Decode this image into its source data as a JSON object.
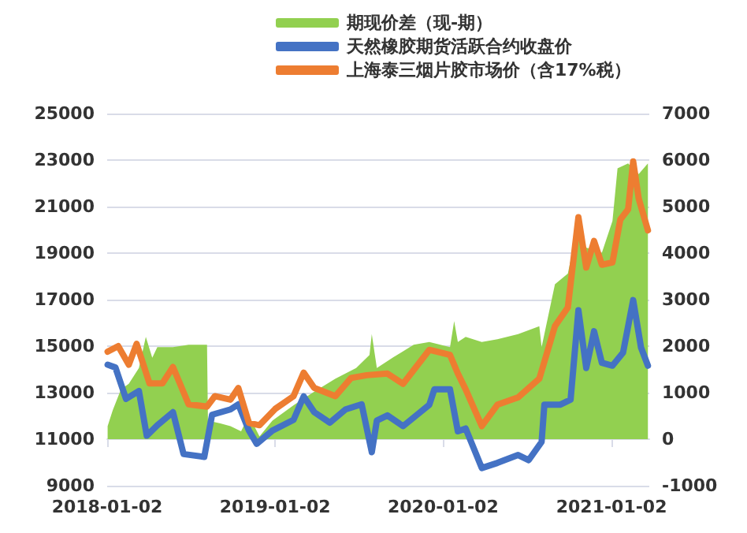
{
  "chart_data": {
    "type": "line",
    "legend": "top",
    "grid": "y",
    "marker": "none",
    "line_style": "solid",
    "xlim": [
      "2018-01-02",
      "2021-03-25"
    ],
    "xticks": [
      {
        "value": "2018-01-02",
        "label": "2018-01-02"
      },
      {
        "value": "2019-01-02",
        "label": "2019-01-02"
      },
      {
        "value": "2020-01-02",
        "label": "2020-01-02"
      },
      {
        "value": "2021-01-02",
        "label": "2021-01-02"
      }
    ],
    "ylim": [
      9000,
      25000
    ],
    "yticks": [
      9000,
      11000,
      13000,
      15000,
      17000,
      19000,
      21000,
      23000,
      25000
    ],
    "y2lim": [
      -1000,
      7000
    ],
    "y2ticks": [
      -1000,
      0,
      1000,
      2000,
      3000,
      4000,
      5000,
      6000,
      7000
    ],
    "series": [
      {
        "name": "期现价差（现-期）",
        "type": "area",
        "axis": "y2",
        "color": "#92d050",
        "x": [
          "2018-01-03",
          "2018-01-14",
          "2018-02-01",
          "2018-02-18",
          "2018-03-12",
          "2018-03-27",
          "2018-04-10",
          "2018-04-21",
          "2018-05-25",
          "2018-06-28",
          "2018-08-07",
          "2018-08-09",
          "2018-09-05",
          "2018-09-27",
          "2018-10-20",
          "2018-11-06",
          "2018-11-29",
          "2018-12-27",
          "2019-02-11",
          "2019-03-28",
          "2019-05-13",
          "2019-06-27",
          "2019-07-26",
          "2019-07-31",
          "2019-08-11",
          "2019-09-14",
          "2019-10-30",
          "2019-12-03",
          "2020-01-17",
          "2020-01-26",
          "2020-02-03",
          "2020-02-20",
          "2020-03-26",
          "2020-04-29",
          "2020-06-13",
          "2020-07-29",
          "2020-08-03",
          "2020-09-01",
          "2020-09-29",
          "2020-10-16",
          "2020-11-08",
          "2020-12-12",
          "2021-01-04",
          "2021-01-15",
          "2021-02-07",
          "2021-03-02",
          "2021-03-22"
        ],
        "values": [
          280,
          620,
          1070,
          1190,
          1530,
          2200,
          1750,
          1980,
          1980,
          2030,
          2030,
          400,
          340,
          280,
          170,
          510,
          60,
          400,
          730,
          1020,
          1300,
          1530,
          1810,
          2260,
          1530,
          1750,
          2030,
          2090,
          1980,
          2540,
          2090,
          2200,
          2090,
          2150,
          2260,
          2430,
          1980,
          3330,
          3560,
          4350,
          4120,
          4010,
          4690,
          5820,
          5930,
          5700,
          5930
        ]
      },
      {
        "name": "天然橡胶期货活跃合约收盘价",
        "color": "#4472c4",
        "x": [
          "2018-01-03",
          "2018-01-20",
          "2018-02-12",
          "2018-03-12",
          "2018-03-29",
          "2018-04-21",
          "2018-05-25",
          "2018-06-17",
          "2018-08-01",
          "2018-08-18",
          "2018-09-27",
          "2018-10-14",
          "2018-11-06",
          "2018-11-23",
          "2018-12-27",
          "2019-02-11",
          "2019-03-05",
          "2019-03-28",
          "2019-05-01",
          "2019-06-04",
          "2019-07-09",
          "2019-07-31",
          "2019-08-11",
          "2019-09-03",
          "2019-10-07",
          "2019-12-03",
          "2019-12-14",
          "2020-01-17",
          "2020-02-03",
          "2020-02-20",
          "2020-03-26",
          "2020-04-29",
          "2020-06-13",
          "2020-07-06",
          "2020-08-03",
          "2020-08-09",
          "2020-09-12",
          "2020-10-05",
          "2020-10-22",
          "2020-11-08",
          "2020-11-25",
          "2020-12-12",
          "2021-01-04",
          "2021-01-27",
          "2021-02-18",
          "2021-03-07",
          "2021-03-22"
        ],
        "values": [
          14200,
          14080,
          12730,
          13070,
          11150,
          11600,
          12160,
          10360,
          10240,
          12050,
          12280,
          12500,
          11370,
          10800,
          11370,
          11830,
          12840,
          12160,
          11710,
          12280,
          12500,
          10440,
          11800,
          12020,
          11560,
          12480,
          13140,
          13140,
          11340,
          11460,
          9760,
          9980,
          10320,
          10100,
          10880,
          12480,
          12480,
          12700,
          16540,
          14060,
          15640,
          14280,
          14160,
          14720,
          16980,
          14940,
          14160
        ]
      },
      {
        "name": "上海泰三烟片胶市场价（含17%税）",
        "color": "#ed7d31",
        "x": [
          "2018-01-03",
          "2018-01-26",
          "2018-02-18",
          "2018-03-07",
          "2018-04-04",
          "2018-05-02",
          "2018-05-25",
          "2018-06-28",
          "2018-08-07",
          "2018-08-24",
          "2018-09-27",
          "2018-10-14",
          "2018-11-06",
          "2018-11-29",
          "2019-01-02",
          "2019-02-11",
          "2019-03-05",
          "2019-03-28",
          "2019-05-13",
          "2019-06-16",
          "2019-07-20",
          "2019-09-03",
          "2019-10-07",
          "2019-12-03",
          "2020-01-17",
          "2020-02-03",
          "2020-02-20",
          "2020-03-26",
          "2020-04-29",
          "2020-06-13",
          "2020-07-29",
          "2020-09-01",
          "2020-09-29",
          "2020-10-22",
          "2020-11-08",
          "2020-11-25",
          "2020-12-12",
          "2021-01-04",
          "2021-01-21",
          "2021-02-07",
          "2021-02-18",
          "2021-03-02",
          "2021-03-22"
        ],
        "values": [
          14760,
          15000,
          14200,
          15100,
          13400,
          13400,
          14100,
          12500,
          12400,
          12850,
          12700,
          13200,
          11700,
          11600,
          12300,
          12850,
          13860,
          13200,
          12850,
          13630,
          13750,
          13820,
          13380,
          14840,
          14620,
          13820,
          13140,
          11560,
          12480,
          12800,
          13600,
          15860,
          16660,
          20540,
          18380,
          19520,
          18500,
          18600,
          20440,
          20880,
          22940,
          21340,
          19980
        ]
      }
    ]
  }
}
